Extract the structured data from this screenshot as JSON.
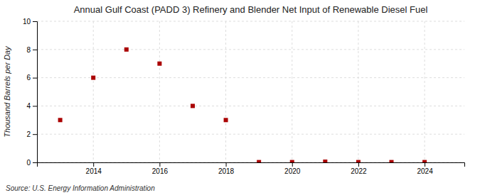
{
  "chart_data": {
    "type": "scatter",
    "title": "Annual Gulf Coast (PADD 3) Refinery and Blender Net Input of Renewable Diesel Fuel",
    "ylabel": "Thousand Barrels per Day",
    "source": "Source: U.S. Energy Information Administration",
    "x": [
      2013,
      2014,
      2015,
      2016,
      2017,
      2018,
      2019,
      2020,
      2021,
      2022,
      2023,
      2024
    ],
    "values": [
      3,
      6,
      8,
      7,
      4,
      3,
      0.02,
      0.02,
      0.05,
      0.02,
      0.02,
      0.02
    ],
    "color": "#aa0000",
    "marker": "square",
    "xlim": [
      2012.3,
      2025.2
    ],
    "xticks": [
      2014,
      2016,
      2018,
      2020,
      2022,
      2024
    ],
    "ylim": [
      0,
      10
    ],
    "yticks": [
      0,
      2,
      4,
      6,
      8,
      10
    ],
    "grid": true
  }
}
